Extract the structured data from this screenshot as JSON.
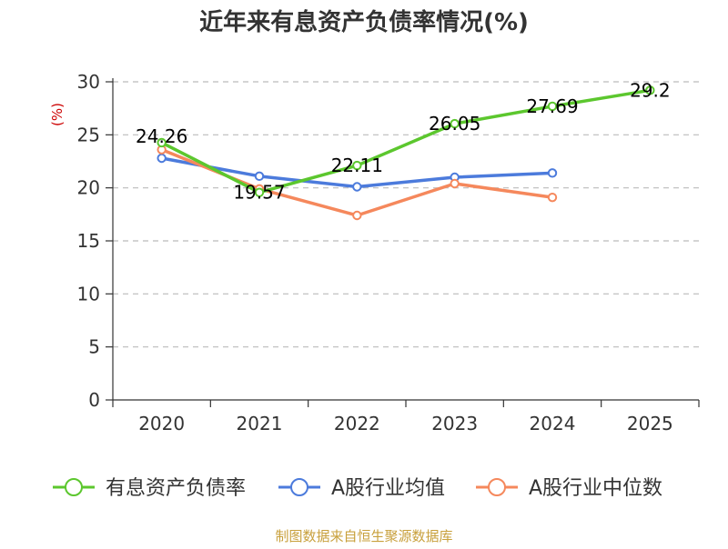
{
  "colors": {
    "series_primary": "#5cc72e",
    "series_industry_avg": "#4c7bdc",
    "series_industry_median": "#f5885c",
    "unit": "#cc0000",
    "source": "#c8a03c",
    "axis": "#333333",
    "grid": "#bbbbbb"
  },
  "chart_data": {
    "type": "line",
    "title": "近年来有息资产负债率情况(%)",
    "ylabel": "(%)",
    "xlabel": "",
    "categories": [
      "2020",
      "2021",
      "2022",
      "2023",
      "2024",
      "2025"
    ],
    "ylim": [
      0,
      30
    ],
    "yticks": [
      "0",
      "5",
      "10",
      "15",
      "20",
      "25",
      "30"
    ],
    "grid": "horizontal-dashed",
    "legend_position": "bottom",
    "series": [
      {
        "name": "有息资产负债率",
        "color_key": "series_primary",
        "values": [
          24.26,
          19.57,
          22.11,
          26.05,
          27.69,
          29.2
        ],
        "labels": [
          "24.26",
          "19.57",
          "22.11",
          "26.05",
          "27.69",
          "29.2"
        ]
      },
      {
        "name": "A股行业均值",
        "color_key": "series_industry_avg",
        "values": [
          22.8,
          21.1,
          20.1,
          21.0,
          21.4,
          null
        ]
      },
      {
        "name": "A股行业中位数",
        "color_key": "series_industry_median",
        "values": [
          23.6,
          19.9,
          17.4,
          20.4,
          19.1,
          null
        ]
      }
    ]
  },
  "source_note": "制图数据来自恒生聚源数据库"
}
